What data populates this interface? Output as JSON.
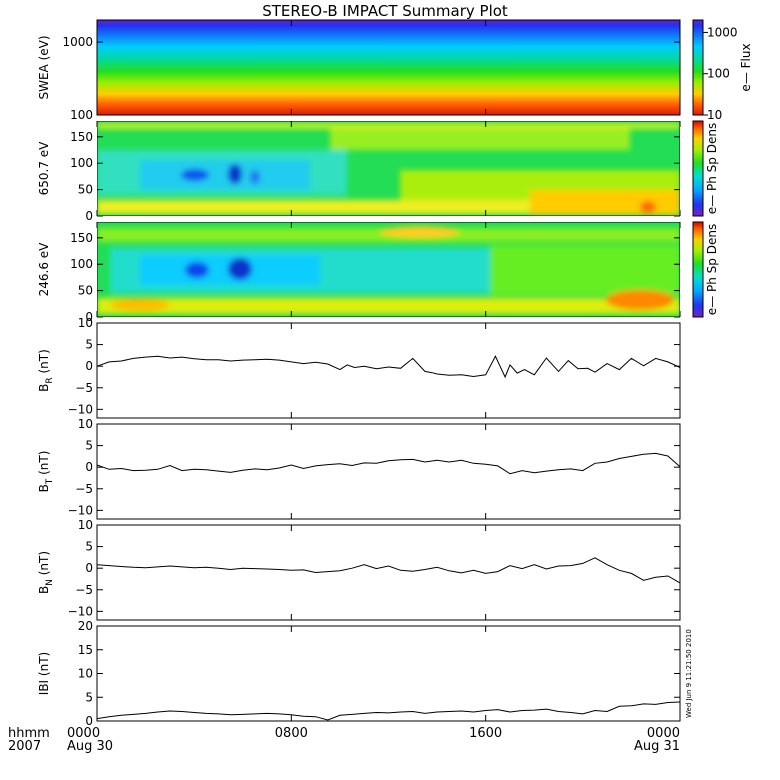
{
  "title": "STEREO-B IMPACT Summary Plot",
  "timestamp": "Wed Jun 9 11:21:50 2010",
  "x_axis": {
    "row1_label": "hhmm",
    "row2_label": "2007",
    "ticks": [
      {
        "t": 0,
        "label": "0000",
        "sub": "Aug 30"
      },
      {
        "t": 8,
        "label": "0800",
        "sub": ""
      },
      {
        "t": 16,
        "label": "1600",
        "sub": ""
      },
      {
        "t": 24,
        "label": "0000",
        "sub": "Aug 31"
      }
    ]
  },
  "chart_data": [
    {
      "type": "heatmap",
      "name": "swea",
      "ylabel": "SWEA (eV)",
      "yscale": "log",
      "ylim": [
        100,
        2000
      ],
      "yticks": [
        {
          "v": 100,
          "label": "100"
        },
        {
          "v": 1000,
          "label": "1000"
        }
      ],
      "colorbar": {
        "label": "e—  Flux",
        "scale": "log",
        "range": [
          10,
          2000
        ],
        "ticks": [
          {
            "v": 10,
            "label": "10"
          },
          {
            "v": 100,
            "label": "100"
          },
          {
            "v": 1000,
            "label": "1000"
          }
        ]
      }
    },
    {
      "type": "heatmap",
      "name": "pad650",
      "ylabel": "650.7 eV",
      "ylim": [
        0,
        180
      ],
      "yticks": [
        {
          "v": 0,
          "label": "0"
        },
        {
          "v": 50,
          "label": "50"
        },
        {
          "v": 100,
          "label": "100"
        },
        {
          "v": 150,
          "label": "150"
        }
      ],
      "colorbar": {
        "label": "e—  Ph Sp Dens"
      }
    },
    {
      "type": "heatmap",
      "name": "pad246",
      "ylabel": "246.6 eV",
      "ylim": [
        0,
        180
      ],
      "yticks": [
        {
          "v": 0,
          "label": "0"
        },
        {
          "v": 50,
          "label": "50"
        },
        {
          "v": 100,
          "label": "100"
        },
        {
          "v": 150,
          "label": "150"
        }
      ],
      "colorbar": {
        "label": "e—  Ph Sp Dens"
      }
    },
    {
      "type": "line",
      "name": "br",
      "ylabel_main": "B",
      "ylabel_sub": "R",
      "ylabel_unit": " (nT)",
      "ylim": [
        -12,
        10
      ],
      "yticks": [
        {
          "v": 10,
          "label": "10"
        },
        {
          "v": 5,
          "label": "5"
        },
        {
          "v": 0,
          "label": "0"
        },
        {
          "v": -5,
          "label": "−5"
        },
        {
          "v": -10,
          "label": "−10"
        }
      ],
      "x": [
        0,
        0.5,
        1,
        1.5,
        2,
        2.5,
        3,
        3.5,
        4,
        4.5,
        5,
        5.5,
        6,
        6.5,
        7,
        7.5,
        8,
        8.5,
        9,
        9.5,
        10,
        10.3,
        10.6,
        11,
        11.5,
        12,
        12.5,
        13,
        13.5,
        13.8,
        14,
        14.5,
        15,
        15.5,
        16,
        16.4,
        16.8,
        17,
        17.3,
        17.6,
        18,
        18.5,
        19,
        19.4,
        19.8,
        20.2,
        20.5,
        21,
        21.5,
        22,
        22.5,
        23,
        23.5,
        24
      ],
      "y": [
        0,
        1,
        1.2,
        1.8,
        2.1,
        2.3,
        1.9,
        2.1,
        1.7,
        1.5,
        1.5,
        1.2,
        1.4,
        1.5,
        1.6,
        1.4,
        1.0,
        0.6,
        0.9,
        0.5,
        -0.8,
        0.3,
        -0.3,
        0.0,
        -0.6,
        -0.2,
        -0.5,
        1.8,
        -1.2,
        -1.5,
        -1.8,
        -2.1,
        -2.0,
        -2.4,
        -2.0,
        2.3,
        -2.5,
        0.3,
        -1.6,
        -0.8,
        -2.0,
        1.9,
        -1.2,
        1.3,
        -0.6,
        -0.5,
        -1.4,
        0.6,
        -0.8,
        1.8,
        0.1,
        1.8,
        1.0,
        -0.3
      ]
    },
    {
      "type": "line",
      "name": "bt",
      "ylabel_main": "B",
      "ylabel_sub": "T",
      "ylabel_unit": " (nT)",
      "ylim": [
        -12,
        10
      ],
      "yticks": [
        {
          "v": 10,
          "label": "10"
        },
        {
          "v": 5,
          "label": "5"
        },
        {
          "v": 0,
          "label": "0"
        },
        {
          "v": -5,
          "label": "−5"
        },
        {
          "v": -10,
          "label": "−10"
        }
      ],
      "x": [
        0,
        0.5,
        1,
        1.5,
        2,
        2.5,
        3,
        3.5,
        4,
        4.5,
        5,
        5.5,
        6,
        6.5,
        7,
        7.5,
        8,
        8.5,
        9,
        9.5,
        10,
        10.5,
        11,
        11.5,
        12,
        12.5,
        13,
        13.5,
        14,
        14.5,
        15,
        15.5,
        16,
        16.5,
        17,
        17.5,
        18,
        18.5,
        19,
        19.5,
        20,
        20.5,
        21,
        21.5,
        22,
        22.5,
        23,
        23.5,
        24
      ],
      "y": [
        0.5,
        -0.5,
        -0.3,
        -0.8,
        -0.7,
        -0.5,
        0.4,
        -0.8,
        -0.5,
        -0.6,
        -0.9,
        -1.2,
        -0.7,
        -0.4,
        -0.6,
        -0.2,
        0.5,
        -0.3,
        0.3,
        0.6,
        0.8,
        0.4,
        1.0,
        0.9,
        1.5,
        1.7,
        1.8,
        1.2,
        1.6,
        1.2,
        1.6,
        0.9,
        0.7,
        0.3,
        -1.5,
        -0.8,
        -1.3,
        -0.9,
        -0.6,
        -0.4,
        -0.8,
        0.9,
        1.2,
        2.0,
        2.5,
        3.0,
        3.2,
        2.6,
        0.1
      ]
    },
    {
      "type": "line",
      "name": "bn",
      "ylabel_main": "B",
      "ylabel_sub": "N",
      "ylabel_unit": " (nT)",
      "ylim": [
        -12,
        10
      ],
      "yticks": [
        {
          "v": 10,
          "label": "10"
        },
        {
          "v": 5,
          "label": "5"
        },
        {
          "v": 0,
          "label": "0"
        },
        {
          "v": -5,
          "label": "−5"
        },
        {
          "v": -10,
          "label": "−10"
        }
      ],
      "x": [
        0,
        0.5,
        1,
        1.5,
        2,
        2.5,
        3,
        3.5,
        4,
        4.5,
        5,
        5.5,
        6,
        6.5,
        7,
        7.5,
        8,
        8.5,
        9,
        9.5,
        10,
        10.5,
        11,
        11.5,
        12,
        12.5,
        13,
        13.5,
        14,
        14.5,
        15,
        15.5,
        16,
        16.5,
        17,
        17.5,
        18,
        18.5,
        19,
        19.5,
        20,
        20.5,
        21,
        21.5,
        22,
        22.5,
        23,
        23.5,
        24
      ],
      "y": [
        0.8,
        0.6,
        0.4,
        0.2,
        0.1,
        0.3,
        0.5,
        0.3,
        0.1,
        0.2,
        0.0,
        -0.3,
        0.0,
        -0.1,
        -0.2,
        -0.3,
        -0.5,
        -0.4,
        -1.0,
        -0.8,
        -0.6,
        0.0,
        0.8,
        -0.1,
        0.5,
        -0.5,
        -0.7,
        -0.3,
        0.2,
        -0.6,
        -1.1,
        -0.5,
        -1.2,
        -0.8,
        0.6,
        -0.1,
        0.8,
        -0.2,
        0.5,
        0.6,
        1.1,
        2.4,
        0.8,
        -0.5,
        -1.2,
        -2.8,
        -2.1,
        -1.8,
        -3.4
      ]
    },
    {
      "type": "line",
      "name": "bmag",
      "ylabel_main": "IBI",
      "ylabel_sub": "",
      "ylabel_unit": " (nT)",
      "ylim": [
        0,
        20
      ],
      "yticks": [
        {
          "v": 20,
          "label": "20"
        },
        {
          "v": 15,
          "label": "15"
        },
        {
          "v": 10,
          "label": "10"
        },
        {
          "v": 5,
          "label": "5"
        },
        {
          "v": 0,
          "label": "0"
        }
      ],
      "x": [
        0,
        0.5,
        1,
        1.5,
        2,
        2.5,
        3,
        3.5,
        4,
        4.5,
        5,
        5.5,
        6,
        6.5,
        7,
        7.5,
        8,
        8.5,
        9,
        9.5,
        10,
        10.5,
        11,
        11.5,
        12,
        12.5,
        13,
        13.5,
        14,
        14.5,
        15,
        15.5,
        16,
        16.5,
        17,
        17.5,
        18,
        18.5,
        19,
        19.5,
        20,
        20.5,
        21,
        21.5,
        22,
        22.5,
        23,
        23.5,
        24
      ],
      "y": [
        0.5,
        0.9,
        1.2,
        1.4,
        1.6,
        1.9,
        2.1,
        2.0,
        1.8,
        1.6,
        1.5,
        1.3,
        1.4,
        1.5,
        1.6,
        1.5,
        1.3,
        1.0,
        0.9,
        0.2,
        1.2,
        1.4,
        1.6,
        1.8,
        1.7,
        1.9,
        2.0,
        1.6,
        1.9,
        2.0,
        2.1,
        1.9,
        2.2,
        2.4,
        1.9,
        2.2,
        2.3,
        2.5,
        2.0,
        1.8,
        1.5,
        2.2,
        2.0,
        3.1,
        3.2,
        3.6,
        3.5,
        3.9,
        4.0
      ]
    }
  ]
}
